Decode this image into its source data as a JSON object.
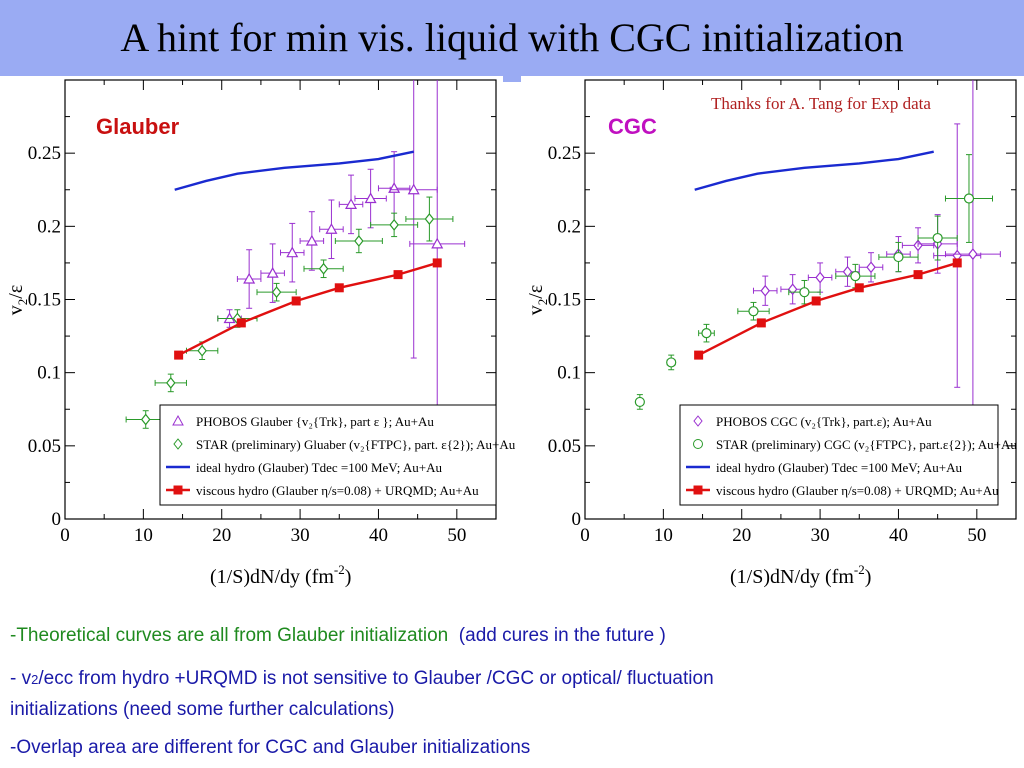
{
  "slide": {
    "title": "A hint for min vis. liquid with CGC initialization",
    "credit": "Thanks for A. Tang for Exp data"
  },
  "notes": {
    "line1_green": "-Theoretical curves are all from Glauber initialization",
    "line1_rest": "(add cures in the future )",
    "line2a": "- v",
    "line2_sub": "2",
    "line2b": "/ecc  from hydro +URQMD is not sensitive to Glauber /CGC or optical/ fluctuation",
    "line3": "initializations  (need some further calculations)",
    "line4": "-Overlap area are different for CGC and Glauber initializations"
  },
  "colors": {
    "phobos": "#9a30d0",
    "star": "#2a9a2a",
    "ideal": "#1a2ad0",
    "viscous": "#e01010",
    "glauber_label": "#c81010",
    "cgc_label": "#c010c0"
  },
  "chart_data": [
    {
      "type": "scatter",
      "label": "Glauber",
      "xlabel_main": "(1/S)dN/dy (fm",
      "xlabel_sup": "-2",
      "xlabel_end": ")",
      "ylabel_v": "v",
      "ylabel_sub": "2",
      "ylabel_end": "/ε",
      "xlim": [
        0,
        55
      ],
      "ylim": [
        0,
        0.3
      ],
      "xticks": [
        "0",
        "10",
        "20",
        "30",
        "40",
        "50"
      ],
      "yticks": [
        "0",
        "0.05",
        "0.1",
        "0.15",
        "0.2",
        "0.25"
      ],
      "legend": [
        "PHOBOS Glauber {v₂{Trk}, part ε }; Au+Au",
        "STAR (preliminary) Gluaber (v₂{FTPC}, part. ε{2}); Au+Au",
        "ideal hydro (Glauber) Tdec =100 MeV; Au+Au",
        "viscous hydro (Glauber η/s=0.08) + URQMD; Au+Au"
      ],
      "series": [
        {
          "marker": "triangle",
          "points": [
            {
              "x": 21.0,
              "y": 0.137,
              "ex": 1.5,
              "ey": 0.006
            },
            {
              "x": 23.5,
              "y": 0.164,
              "ex": 1.5,
              "ey": 0.02
            },
            {
              "x": 26.5,
              "y": 0.168,
              "ex": 1.5,
              "ey": 0.02
            },
            {
              "x": 29.0,
              "y": 0.182,
              "ex": 1.5,
              "ey": 0.02
            },
            {
              "x": 31.5,
              "y": 0.19,
              "ex": 1.5,
              "ey": 0.02
            },
            {
              "x": 34.0,
              "y": 0.198,
              "ex": 1.5,
              "ey": 0.02
            },
            {
              "x": 36.5,
              "y": 0.215,
              "ex": 1.5,
              "ey": 0.02
            },
            {
              "x": 39.0,
              "y": 0.219,
              "ex": 2.0,
              "ey": 0.02
            },
            {
              "x": 42.0,
              "y": 0.226,
              "ex": 2.0,
              "ey": 0.025
            },
            {
              "x": 44.5,
              "y": 0.225,
              "ex": 3.0,
              "ey": 0.115
            },
            {
              "x": 47.5,
              "y": 0.188,
              "ex": 3.5,
              "ey": 0.125
            }
          ]
        },
        {
          "marker": "diamond",
          "points": [
            {
              "x": 10.3,
              "y": 0.068,
              "ex": 2.5,
              "ey": 0.006
            },
            {
              "x": 13.5,
              "y": 0.093,
              "ex": 2.0,
              "ey": 0.006
            },
            {
              "x": 17.5,
              "y": 0.115,
              "ex": 2.0,
              "ey": 0.006
            },
            {
              "x": 22.0,
              "y": 0.137,
              "ex": 2.5,
              "ey": 0.006
            },
            {
              "x": 27.0,
              "y": 0.155,
              "ex": 2.5,
              "ey": 0.006
            },
            {
              "x": 33.0,
              "y": 0.171,
              "ex": 2.5,
              "ey": 0.006
            },
            {
              "x": 37.5,
              "y": 0.19,
              "ex": 3.0,
              "ey": 0.008
            },
            {
              "x": 42.0,
              "y": 0.201,
              "ex": 3.0,
              "ey": 0.008
            },
            {
              "x": 46.5,
              "y": 0.205,
              "ex": 3.0,
              "ey": 0.015
            }
          ]
        },
        {
          "marker": "line",
          "points": [
            {
              "x": 14,
              "y": 0.225
            },
            {
              "x": 18,
              "y": 0.231
            },
            {
              "x": 22,
              "y": 0.236
            },
            {
              "x": 28,
              "y": 0.24
            },
            {
              "x": 35,
              "y": 0.243
            },
            {
              "x": 40,
              "y": 0.246
            },
            {
              "x": 44.5,
              "y": 0.251
            }
          ]
        },
        {
          "marker": "square",
          "points": [
            {
              "x": 14.5,
              "y": 0.112
            },
            {
              "x": 22.5,
              "y": 0.134
            },
            {
              "x": 29.5,
              "y": 0.149
            },
            {
              "x": 35.0,
              "y": 0.158
            },
            {
              "x": 42.5,
              "y": 0.167
            },
            {
              "x": 47.5,
              "y": 0.175
            }
          ]
        }
      ]
    },
    {
      "type": "scatter",
      "label": "CGC",
      "xlabel_main": "(1/S)dN/dy (fm",
      "xlabel_sup": "-2",
      "xlabel_end": ")",
      "ylabel_v": "v",
      "ylabel_sub": "2",
      "ylabel_end": "/ε",
      "xlim": [
        0,
        55
      ],
      "ylim": [
        0,
        0.3
      ],
      "xticks": [
        "0",
        "10",
        "20",
        "30",
        "40",
        "50"
      ],
      "yticks": [
        "0",
        "0.05",
        "0.1",
        "0.15",
        "0.2",
        "0.25"
      ],
      "legend": [
        "PHOBOS CGC (v₂{Trk}, part.ε); Au+Au",
        "STAR (preliminary) CGC (v₂{FTPC}, part.ε{2}); Au+Au",
        "ideal hydro (Glauber) Tdec =100 MeV; Au+Au",
        "viscous hydro (Glauber η/s=0.08) + URQMD; Au+Au"
      ],
      "series": [
        {
          "marker": "diamond-open",
          "points": [
            {
              "x": 23.0,
              "y": 0.156,
              "ex": 1.5,
              "ey": 0.01
            },
            {
              "x": 26.5,
              "y": 0.157,
              "ex": 1.5,
              "ey": 0.01
            },
            {
              "x": 30.0,
              "y": 0.165,
              "ex": 1.5,
              "ey": 0.01
            },
            {
              "x": 33.5,
              "y": 0.169,
              "ex": 1.5,
              "ey": 0.01
            },
            {
              "x": 36.5,
              "y": 0.172,
              "ex": 1.5,
              "ey": 0.01
            },
            {
              "x": 40.0,
              "y": 0.181,
              "ex": 1.5,
              "ey": 0.012
            },
            {
              "x": 42.5,
              "y": 0.187,
              "ex": 2.0,
              "ey": 0.012
            },
            {
              "x": 45.0,
              "y": 0.188,
              "ex": 2.5,
              "ey": 0.02
            },
            {
              "x": 47.5,
              "y": 0.18,
              "ex": 3.0,
              "ey": 0.09
            },
            {
              "x": 49.5,
              "y": 0.181,
              "ex": 3.5,
              "ey": 0.12
            }
          ]
        },
        {
          "marker": "circle",
          "points": [
            {
              "x": 7.0,
              "y": 0.08,
              "ex": 0.4,
              "ey": 0.005
            },
            {
              "x": 11.0,
              "y": 0.107,
              "ex": 0.5,
              "ey": 0.005
            },
            {
              "x": 15.5,
              "y": 0.127,
              "ex": 1.0,
              "ey": 0.006
            },
            {
              "x": 21.5,
              "y": 0.142,
              "ex": 2.0,
              "ey": 0.006
            },
            {
              "x": 28.0,
              "y": 0.155,
              "ex": 2.0,
              "ey": 0.008
            },
            {
              "x": 34.5,
              "y": 0.166,
              "ex": 2.5,
              "ey": 0.008
            },
            {
              "x": 40.0,
              "y": 0.179,
              "ex": 2.5,
              "ey": 0.01
            },
            {
              "x": 45.0,
              "y": 0.192,
              "ex": 2.5,
              "ey": 0.015
            },
            {
              "x": 49.0,
              "y": 0.219,
              "ex": 3.0,
              "ey": 0.03
            }
          ]
        },
        {
          "marker": "line",
          "points": [
            {
              "x": 14,
              "y": 0.225
            },
            {
              "x": 18,
              "y": 0.231
            },
            {
              "x": 22,
              "y": 0.236
            },
            {
              "x": 28,
              "y": 0.24
            },
            {
              "x": 35,
              "y": 0.243
            },
            {
              "x": 40,
              "y": 0.246
            },
            {
              "x": 44.5,
              "y": 0.251
            }
          ]
        },
        {
          "marker": "square",
          "points": [
            {
              "x": 14.5,
              "y": 0.112
            },
            {
              "x": 22.5,
              "y": 0.134
            },
            {
              "x": 29.5,
              "y": 0.149
            },
            {
              "x": 35.0,
              "y": 0.158
            },
            {
              "x": 42.5,
              "y": 0.167
            },
            {
              "x": 47.5,
              "y": 0.175
            }
          ]
        }
      ]
    }
  ]
}
